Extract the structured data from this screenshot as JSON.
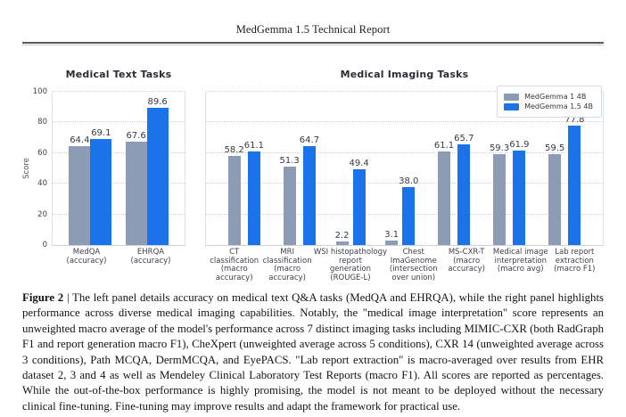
{
  "page": {
    "header_title": "MedGemma 1.5 Technical Report"
  },
  "figure": {
    "ylabel": "Score",
    "yticks": [
      0,
      20,
      40,
      60,
      80,
      100
    ],
    "legend": [
      {
        "label": "MedGemma 1 4B",
        "color": "#8d9cb5"
      },
      {
        "label": "MedGemma 1.5 4B",
        "color": "#1a73e8"
      }
    ]
  },
  "chart_data": [
    {
      "type": "bar",
      "title": "Medical Text Tasks",
      "xlabel": "",
      "ylabel": "Score",
      "ylim": [
        0,
        100
      ],
      "yticks": [
        0,
        20,
        40,
        60,
        80,
        100
      ],
      "grid": "horizontal dotted",
      "categories": [
        "MedQA (accuracy)",
        "EHRQA (accuracy)"
      ],
      "category_lines": [
        [
          "MedQA",
          "(accuracy)"
        ],
        [
          "EHRQA",
          "(accuracy)"
        ]
      ],
      "series": [
        {
          "name": "MedGemma 1 4B",
          "color": "#8d9cb5",
          "values": [
            64.4,
            67.6
          ]
        },
        {
          "name": "MedGemma 1.5 4B",
          "color": "#1a73e8",
          "values": [
            69.1,
            89.6
          ]
        }
      ]
    },
    {
      "type": "bar",
      "title": "Medical Imaging Tasks",
      "xlabel": "",
      "ylabel": "",
      "ylim": [
        0,
        100
      ],
      "yticks": [
        0,
        20,
        40,
        60,
        80,
        100
      ],
      "grid": "horizontal dotted",
      "legend_position": "upper right",
      "categories": [
        "CT classification (macro accuracy)",
        "MRI classification (macro accuracy)",
        "WSI histopathology report generation (ROUGE-L)",
        "Chest ImaGenome (intersection over union)",
        "MS-CXR-T (macro accuracy)",
        "Medical image interpretation (macro avg)",
        "Lab report extraction (macro F1)"
      ],
      "category_lines": [
        [
          "CT",
          "classification",
          "(macro",
          "accuracy)"
        ],
        [
          "MRI",
          "classification",
          "(macro",
          "accuracy)"
        ],
        [
          "WSI histopathology",
          "report",
          "generation",
          "(ROUGE-L)"
        ],
        [
          "Chest",
          "ImaGenome",
          "(intersection",
          "over union)"
        ],
        [
          "MS-CXR-T",
          "(macro",
          "accuracy)"
        ],
        [
          "Medical image",
          "interpretation",
          "(macro avg)"
        ],
        [
          "Lab report",
          "extraction",
          "(macro F1)"
        ]
      ],
      "series": [
        {
          "name": "MedGemma 1 4B",
          "color": "#8d9cb5",
          "values": [
            58.2,
            51.3,
            2.2,
            3.1,
            61.1,
            59.3,
            59.5
          ]
        },
        {
          "name": "MedGemma 1.5 4B",
          "color": "#1a73e8",
          "values": [
            61.1,
            64.7,
            49.4,
            38.0,
            65.7,
            61.9,
            77.8
          ]
        }
      ]
    }
  ],
  "caption": {
    "label": "Figure 2",
    "separator": "|",
    "text": "The left panel details accuracy on medical text Q&A tasks (MedQA and EHRQA), while the right panel highlights performance across diverse medical imaging capabilities. Notably, the \"medical image interpretation\" score represents an unweighted macro average of the model's performance across 7 distinct imaging tasks including MIMIC-CXR (both RadGraph F1 and report generation macro F1), CheXpert (unweighted average across 5 conditions), CXR 14 (unweighted average across 3 conditions), Path MCQA, DermMCQA, and EyePACS. \"Lab report extraction\" is macro-averaged over results from EHR dataset 2, 3 and 4 as well as Mendeley Clinical Laboratory Test Reports (macro F1). All scores are reported as percentages. While the out-of-the-box performance is highly promising, the model is not meant to be deployed without the necessary clinical fine-tuning. Fine-tuning may improve results and adapt the framework for practical use."
  }
}
